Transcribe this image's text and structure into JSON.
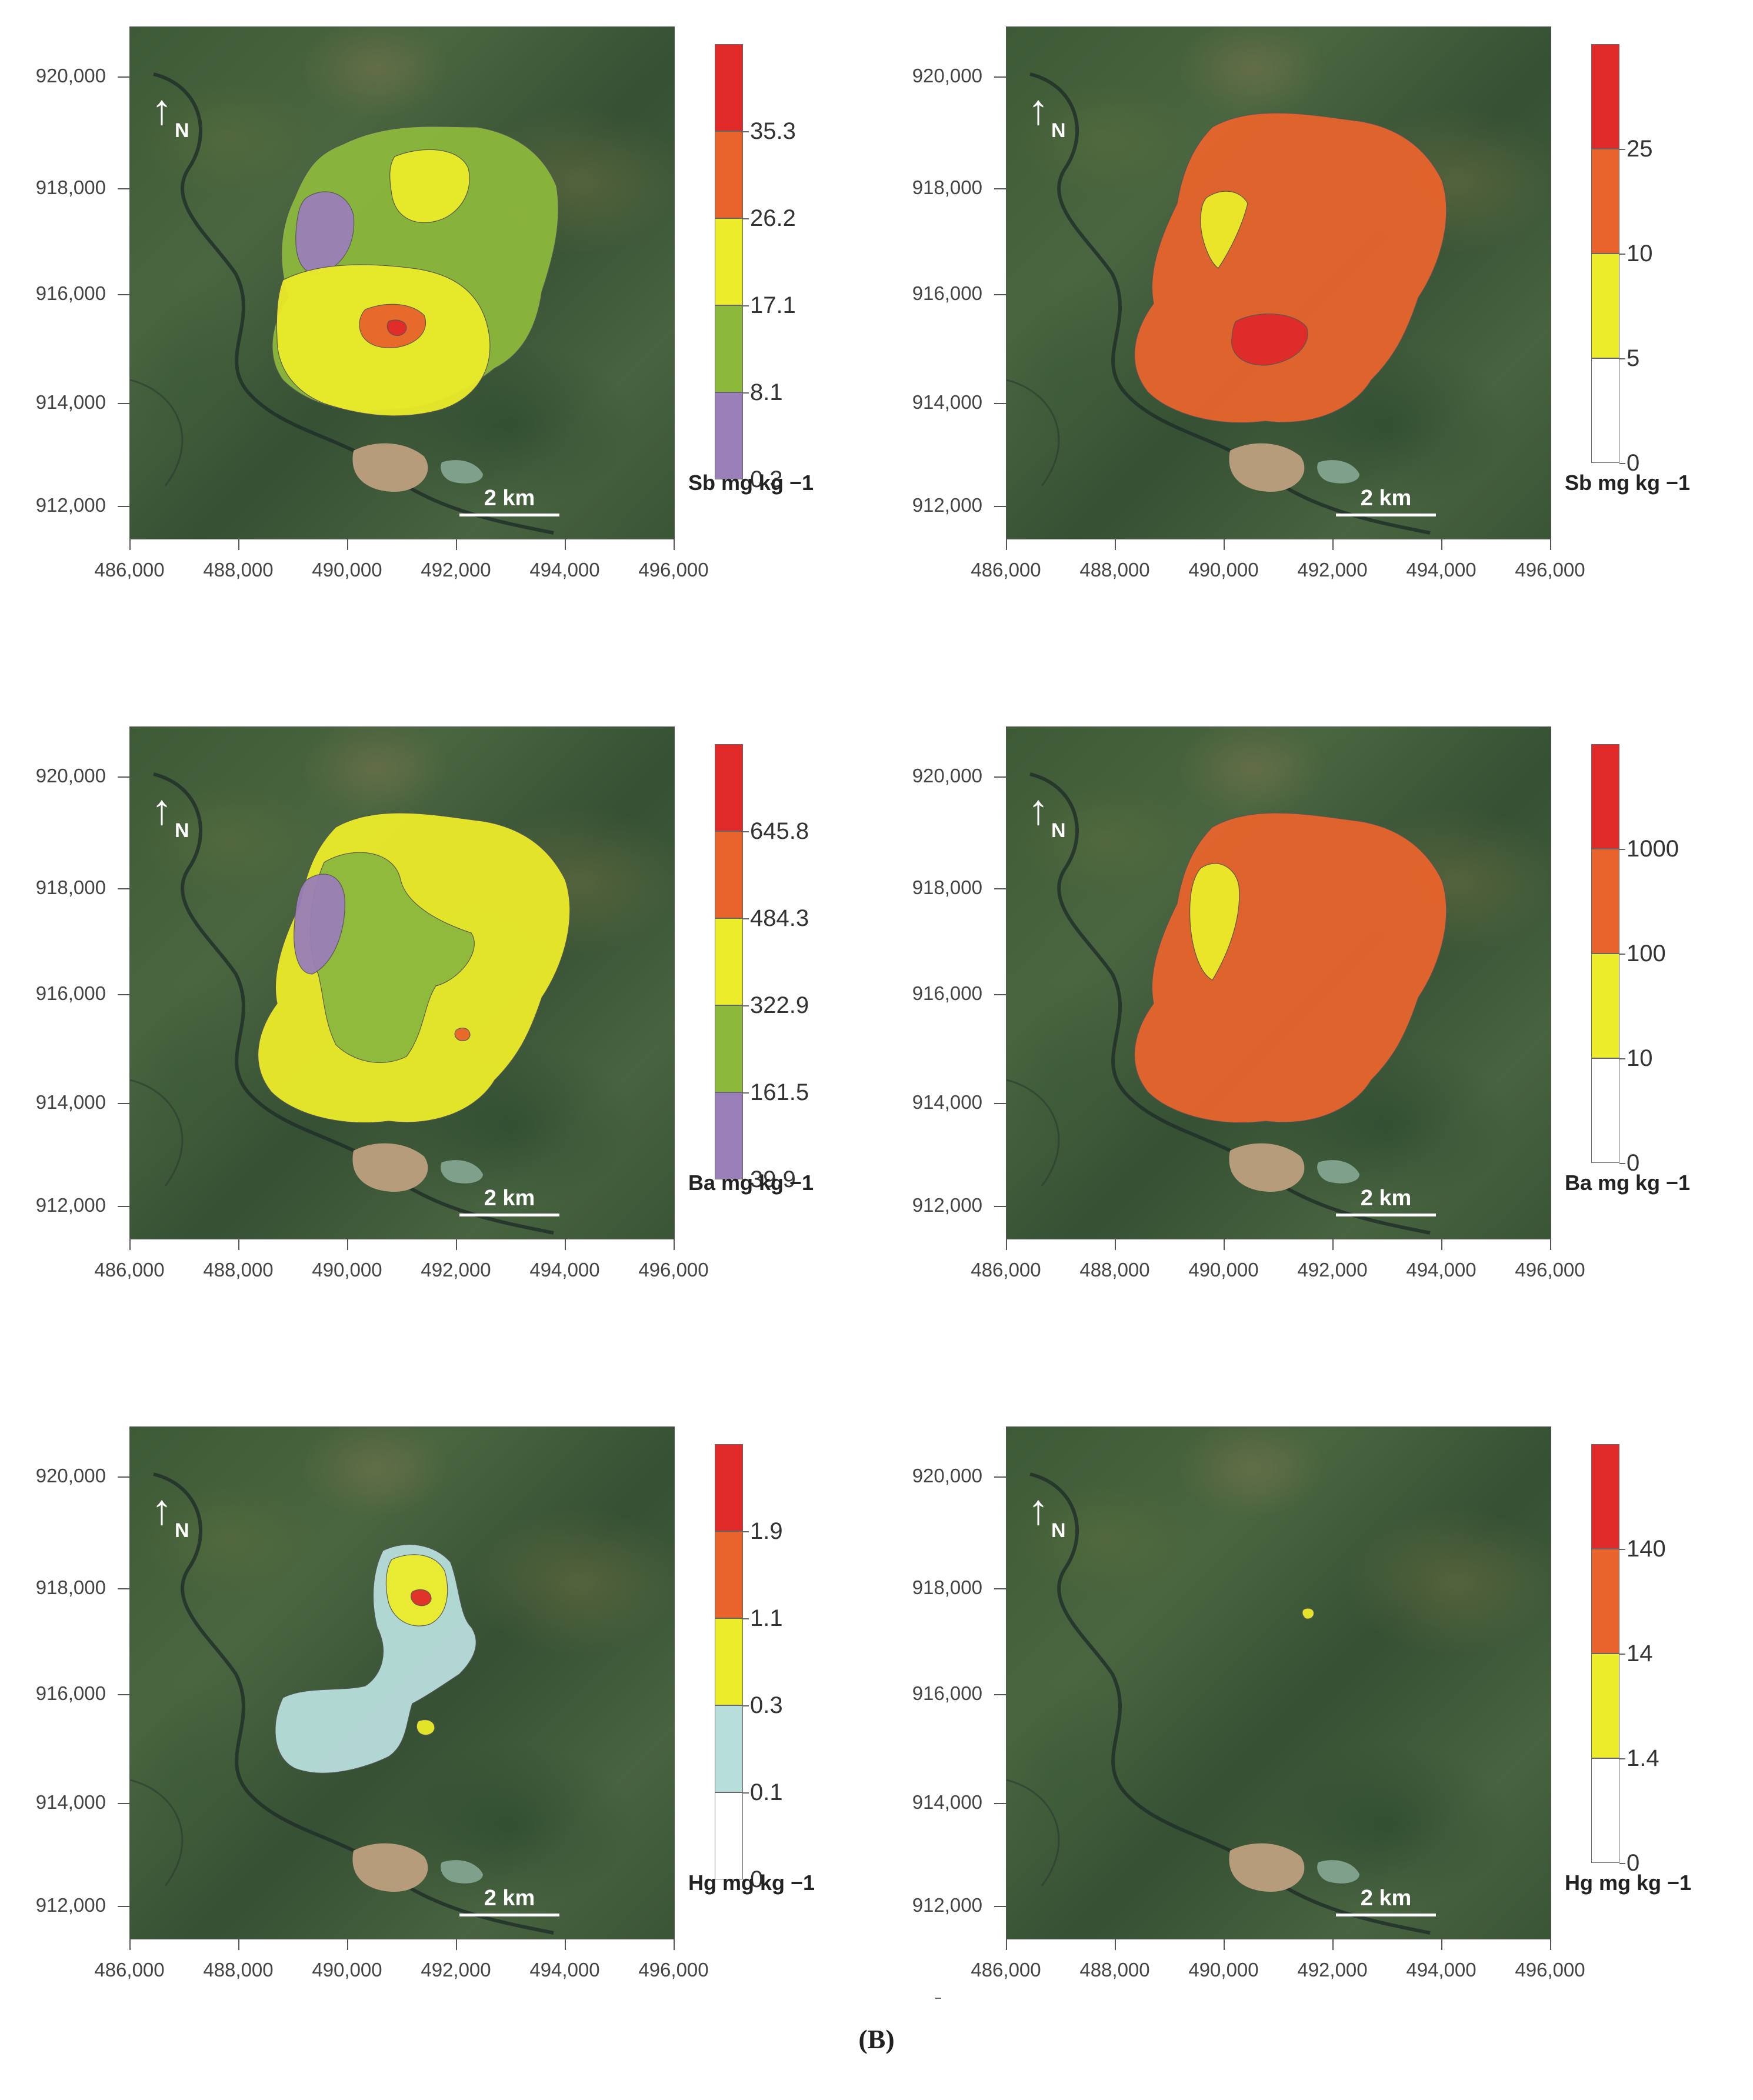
{
  "caption": "(B)",
  "colors": {
    "purple": "#9a7fb8",
    "green": "#8cb83c",
    "yellow": "#ecec2a",
    "orange": "#e8642c",
    "red": "#e02a2a",
    "lightblue": "#b8dedc",
    "white": "#ffffff"
  },
  "map_common": {
    "north_arrow": "↑",
    "north_label": "N",
    "scale_label": "2 km",
    "y_ticks": [
      "920,000",
      "918,000",
      "916,000",
      "914,000",
      "912,000"
    ],
    "x_ticks": [
      "486,000",
      "488,000",
      "490,000",
      "492,000",
      "494,000",
      "496,000"
    ]
  },
  "panels": [
    {
      "id": "sb-left",
      "unit": "Sb mg kg −1",
      "legend": [
        {
          "label": "35.3",
          "color": "#e02a2a"
        },
        {
          "label": "26.2",
          "color": "#e8642c"
        },
        {
          "label": "17.1",
          "color": "#ecec2a"
        },
        {
          "label": "8.1",
          "color": "#8cb83c"
        },
        {
          "label": "0.3",
          "color": "#9a7fb8"
        }
      ]
    },
    {
      "id": "sb-right",
      "unit": "Sb mg kg −1",
      "legend": [
        {
          "label": "25",
          "color": "#e02a2a"
        },
        {
          "label": "10",
          "color": "#e8642c"
        },
        {
          "label": "5",
          "color": "#ecec2a"
        },
        {
          "label": "0",
          "color": "#ffffff"
        }
      ]
    },
    {
      "id": "ba-left",
      "unit": "Ba mg kg −1",
      "legend": [
        {
          "label": "645.8",
          "color": "#e02a2a"
        },
        {
          "label": "484.3",
          "color": "#e8642c"
        },
        {
          "label": "322.9",
          "color": "#ecec2a"
        },
        {
          "label": "161.5",
          "color": "#8cb83c"
        },
        {
          "label": "39.9",
          "color": "#9a7fb8"
        }
      ]
    },
    {
      "id": "ba-right",
      "unit": "Ba mg kg −1",
      "legend": [
        {
          "label": "1000",
          "color": "#e02a2a"
        },
        {
          "label": "100",
          "color": "#e8642c"
        },
        {
          "label": "10",
          "color": "#ecec2a"
        },
        {
          "label": "0",
          "color": "#ffffff"
        }
      ]
    },
    {
      "id": "hg-left",
      "unit": "Hg mg kg −1",
      "legend": [
        {
          "label": "1.9",
          "color": "#e02a2a"
        },
        {
          "label": "1.1",
          "color": "#e8642c"
        },
        {
          "label": "0.3",
          "color": "#ecec2a"
        },
        {
          "label": "0.1",
          "color": "#b8dedc"
        },
        {
          "label": "0",
          "color": "#ffffff"
        }
      ]
    },
    {
      "id": "hg-right",
      "unit": "Hg mg kg −1",
      "legend": [
        {
          "label": "140",
          "color": "#e02a2a"
        },
        {
          "label": "14",
          "color": "#e8642c"
        },
        {
          "label": "1.4",
          "color": "#ecec2a"
        },
        {
          "label": "0",
          "color": "#ffffff"
        }
      ]
    }
  ]
}
